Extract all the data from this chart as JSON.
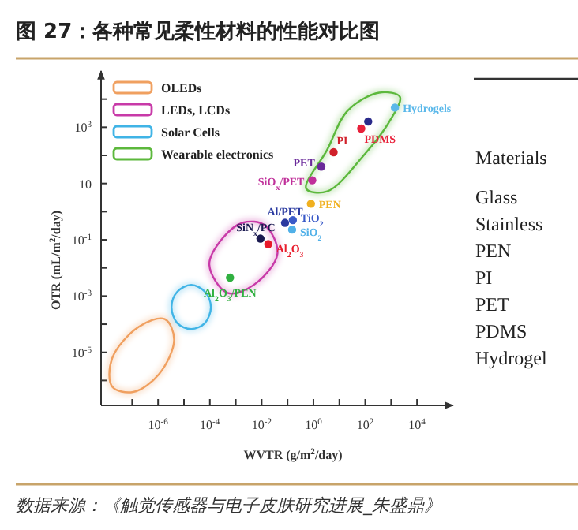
{
  "chart_data": {
    "type": "scatter",
    "title": "图 27：各种常见柔性材料的性能对比图",
    "xlabel": "WVTR (g/m$^{2}$/day)",
    "ylabel": "OTR (mL/m$^{2}$/day)",
    "log": "xy",
    "xlim": [
      6.3e-09,
      250000
    ],
    "ylim": [
      1.3e-07,
      100000
    ],
    "xticks": [
      {
        "value": 1e-07,
        "label": null
      },
      {
        "value": 1e-06,
        "label": "10$^{-6}$"
      },
      {
        "value": 1e-05,
        "label": null
      },
      {
        "value": 0.0001,
        "label": "10$^{-4}$"
      },
      {
        "value": 0.001,
        "label": null
      },
      {
        "value": 0.01,
        "label": "10$^{-2}$"
      },
      {
        "value": 0.1,
        "label": null
      },
      {
        "value": 1,
        "label": "10$^{0}$"
      },
      {
        "value": 10,
        "label": null
      },
      {
        "value": 100,
        "label": "10$^{2}$"
      },
      {
        "value": 1000,
        "label": null
      },
      {
        "value": 10000,
        "label": "10$^{4}$"
      }
    ],
    "yticks": [
      {
        "value": 1e-06,
        "label": null
      },
      {
        "value": 1e-05,
        "label": "10$^{-5}$"
      },
      {
        "value": 0.0001,
        "label": null
      },
      {
        "value": 0.001,
        "label": "10$^{-3}$"
      },
      {
        "value": 0.01,
        "label": null
      },
      {
        "value": 0.1,
        "label": "10$^{-1}$"
      },
      {
        "value": 1,
        "label": null
      },
      10,
      {
        "value": 100,
        "label": null
      },
      {
        "value": 1000,
        "label": "10$^{3}$"
      },
      {
        "value": 10000,
        "label": null
      }
    ],
    "grid": false,
    "legend": "top left",
    "marker": "circle",
    "series": [
      {
        "type": "other",
        "name": "OLEDs",
        "color": "#f0a060"
      },
      {
        "type": "other",
        "name": "LEDs, LCDs",
        "color": "#c83aa8"
      },
      {
        "type": "other",
        "name": "Solar Cells",
        "color": "#40b4e6"
      },
      {
        "type": "other",
        "name": "Wearable electronics",
        "color": "#5cb83c"
      },
      {
        "name": "Hydrogels",
        "color": "#5ab8ea",
        "x": [
          1400
        ],
        "values": [
          5000
        ]
      },
      {
        "color": "#2a2a8a",
        "x": [
          130
        ],
        "values": [
          1600
        ]
      },
      {
        "name": "PDMS",
        "color": "#e8203a",
        "x": [
          70
        ],
        "values": [
          900
        ]
      },
      {
        "name": "PI",
        "color": "#d0202a",
        "x": [
          6
        ],
        "values": [
          130
        ]
      },
      {
        "name": "PET",
        "color": "#6a2a9a",
        "x": [
          2
        ],
        "values": [
          40
        ]
      },
      {
        "name": "SiO$_{x}$/PET",
        "color": "#c0309a",
        "x": [
          0.9
        ],
        "values": [
          13
        ]
      },
      {
        "name": "PEN",
        "color": "#f0b020",
        "x": [
          0.8
        ],
        "values": [
          1.9
        ]
      },
      {
        "name": "Al/PET",
        "color": "#2a3aa0",
        "x": [
          0.08
        ],
        "values": [
          0.4
        ]
      },
      {
        "name": "TiO$_{2}$",
        "color": "#3a5ac8",
        "x": [
          0.16
        ],
        "values": [
          0.5
        ]
      },
      {
        "name": "SiO$_{2}$",
        "color": "#50b0e8",
        "x": [
          0.15
        ],
        "values": [
          0.23
        ]
      },
      {
        "name": "SiN$_{x}$/PC",
        "color": "#1a1a50",
        "x": [
          0.009
        ],
        "values": [
          0.11
        ]
      },
      {
        "name": "Al$_{2}$O$_{3}$",
        "color": "#e81a2a",
        "x": [
          0.018
        ],
        "values": [
          0.07
        ]
      },
      {
        "name": "Al$_{2}$O$_{3}$/PEN",
        "color": "#30b040",
        "x": [
          0.0006
        ],
        "values": [
          0.0045
        ]
      }
    ],
    "annotations": [
      "Materials",
      "Glass",
      "Stainless",
      "PEN",
      "PI",
      "PET",
      "PDMS",
      "Hydrogel",
      "数据来源：《触觉传感器与电子皮肤研究进展_朱盛鼎》"
    ]
  }
}
